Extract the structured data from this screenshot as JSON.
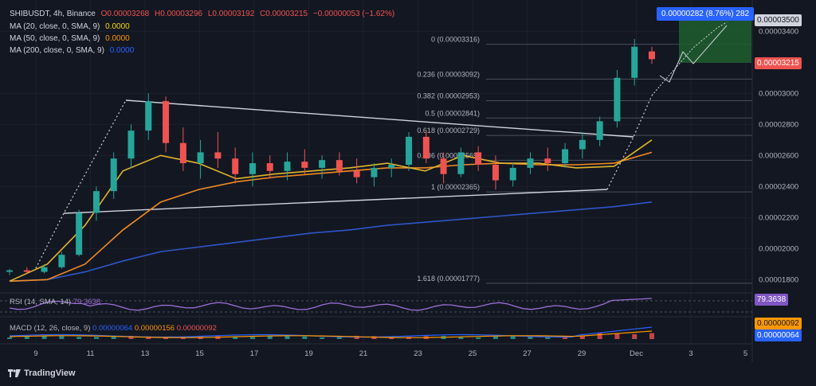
{
  "header": {
    "symbol": "SHIBUSDT, 4h, Binance",
    "open": "O0.00003268",
    "high": "H0.00003296",
    "low": "L0.00003192",
    "close": "C0.00003215",
    "change": "−0.00000053 (−1.62%)"
  },
  "ma_legend": [
    {
      "label": "MA (20, close, 0, SMA, 9)",
      "value": "0.0000",
      "color": "#f5d90a"
    },
    {
      "label": "MA (50, close, 0, SMA, 9)",
      "value": "0.0000",
      "color": "#ff9800"
    },
    {
      "label": "MA (200, close, 0, SMA, 9)",
      "value": "0.0000",
      "color": "#2962ff"
    }
  ],
  "rsi_label": "RSI (14, SMA, 14)",
  "rsi_value": "79.3638",
  "macd_label": "MACD (12, 26, close, 9)",
  "macd_values": [
    "0.00000064",
    "0.00000156",
    "0.00000092"
  ],
  "macd_axis_values": [
    "0.00000092",
    "0.00000064"
  ],
  "current_price": "0.00003215",
  "price_axis_top": "0.00003500",
  "target_box": "0.00000282 (8.76%) 282",
  "branding": "TradingView",
  "colors": {
    "up": "#26a69a",
    "down": "#ef5350",
    "ma20": "#e0b52c",
    "ma50": "#f08a24",
    "ma200": "#2f56c9",
    "rsi": "#9c6fd6",
    "accent": "#2962ff"
  },
  "chart_data": {
    "type": "candlestick",
    "x_ticks": [
      "9",
      "11",
      "13",
      "15",
      "17",
      "19",
      "21",
      "23",
      "25",
      "27",
      "29",
      "Dec",
      "3",
      "5"
    ],
    "y_ticks": [
      "0.00003400",
      "0.00003000",
      "0.00002800",
      "0.00002600",
      "0.00002400",
      "0.00002200",
      "0.00002000",
      "0.00001800"
    ],
    "ylim": [
      1.73e-05,
      3.55e-05
    ],
    "fib_levels": [
      {
        "label": "0 (0.00003316)",
        "value": 3.316e-05
      },
      {
        "label": "0.236 (0.00003092)",
        "value": 3.092e-05
      },
      {
        "label": "0.382 (0.00002953)",
        "value": 2.953e-05
      },
      {
        "label": "0.5 (0.00002841)",
        "value": 2.841e-05
      },
      {
        "label": "0.618 (0.00002729)",
        "value": 2.729e-05
      },
      {
        "label": "0.786 (0.00002569)",
        "value": 2.569e-05
      },
      {
        "label": "1 (0.00002365)",
        "value": 2.365e-05
      },
      {
        "label": "1.618 (0.00001777)",
        "value": 1.777e-05
      }
    ],
    "ma20_values": [
      1.79e-05,
      1.9e-05,
      2.15e-05,
      2.5e-05,
      2.6e-05,
      2.55e-05,
      2.45e-05,
      2.48e-05,
      2.5e-05,
      2.52e-05,
      2.55e-05,
      2.5e-05,
      2.6e-05,
      2.55e-05,
      2.55e-05,
      2.52e-05,
      2.53e-05,
      2.7e-05
    ],
    "ma50_values": [
      1.79e-05,
      1.8e-05,
      1.9e-05,
      2.12e-05,
      2.3e-05,
      2.38e-05,
      2.43e-05,
      2.46e-05,
      2.48e-05,
      2.5e-05,
      2.52e-05,
      2.52e-05,
      2.54e-05,
      2.55e-05,
      2.54e-05,
      2.54e-05,
      2.55e-05,
      2.62e-05
    ],
    "ma200_values": [
      1.79e-05,
      1.8e-05,
      1.85e-05,
      1.92e-05,
      1.98e-05,
      2.01e-05,
      2.04e-05,
      2.07e-05,
      2.1e-05,
      2.12e-05,
      2.15e-05,
      2.17e-05,
      2.19e-05,
      2.21e-05,
      2.23e-05,
      2.25e-05,
      2.27e-05,
      2.3e-05
    ],
    "candles": [
      [
        1.85e-05,
        1.87e-05,
        1.83e-05,
        1.86e-05
      ],
      [
        1.86e-05,
        1.88e-05,
        1.84e-05,
        1.85e-05
      ],
      [
        1.85e-05,
        1.9e-05,
        1.84e-05,
        1.88e-05
      ],
      [
        1.88e-05,
        1.98e-05,
        1.87e-05,
        1.96e-05
      ],
      [
        1.96e-05,
        2.25e-05,
        1.95e-05,
        2.23e-05
      ],
      [
        2.23e-05,
        2.4e-05,
        2.18e-05,
        2.37e-05
      ],
      [
        2.37e-05,
        2.62e-05,
        2.32e-05,
        2.58e-05
      ],
      [
        2.58e-05,
        2.8e-05,
        2.52e-05,
        2.76e-05
      ],
      [
        2.76e-05,
        3e-05,
        2.7e-05,
        2.95e-05
      ],
      [
        2.95e-05,
        2.98e-05,
        2.62e-05,
        2.68e-05
      ],
      [
        2.68e-05,
        2.78e-05,
        2.5e-05,
        2.55e-05
      ],
      [
        2.55e-05,
        2.7e-05,
        2.45e-05,
        2.62e-05
      ],
      [
        2.62e-05,
        2.75e-05,
        2.52e-05,
        2.58e-05
      ],
      [
        2.58e-05,
        2.65e-05,
        2.42e-05,
        2.48e-05
      ],
      [
        2.48e-05,
        2.62e-05,
        2.4e-05,
        2.55e-05
      ],
      [
        2.55e-05,
        2.6e-05,
        2.45e-05,
        2.5e-05
      ],
      [
        2.5e-05,
        2.62e-05,
        2.44e-05,
        2.56e-05
      ],
      [
        2.56e-05,
        2.64e-05,
        2.48e-05,
        2.52e-05
      ],
      [
        2.52e-05,
        2.6e-05,
        2.45e-05,
        2.57e-05
      ],
      [
        2.57e-05,
        2.62e-05,
        2.47e-05,
        2.5e-05
      ],
      [
        2.5e-05,
        2.58e-05,
        2.42e-05,
        2.46e-05
      ],
      [
        2.46e-05,
        2.55e-05,
        2.4e-05,
        2.52e-05
      ],
      [
        2.52e-05,
        2.58e-05,
        2.46e-05,
        2.54e-05
      ],
      [
        2.54e-05,
        2.75e-05,
        2.5e-05,
        2.72e-05
      ],
      [
        2.72e-05,
        2.76e-05,
        2.55e-05,
        2.58e-05
      ],
      [
        2.58e-05,
        2.62e-05,
        2.42e-05,
        2.48e-05
      ],
      [
        2.48e-05,
        2.65e-05,
        2.46e-05,
        2.62e-05
      ],
      [
        2.62e-05,
        2.66e-05,
        2.5e-05,
        2.54e-05
      ],
      [
        2.54e-05,
        2.6e-05,
        2.38e-05,
        2.44e-05
      ],
      [
        2.44e-05,
        2.55e-05,
        2.4e-05,
        2.52e-05
      ],
      [
        2.52e-05,
        2.62e-05,
        2.48e-05,
        2.58e-05
      ],
      [
        2.58e-05,
        2.65e-05,
        2.5e-05,
        2.55e-05
      ],
      [
        2.55e-05,
        2.68e-05,
        2.52e-05,
        2.64e-05
      ],
      [
        2.64e-05,
        2.75e-05,
        2.58e-05,
        2.7e-05
      ],
      [
        2.7e-05,
        2.85e-05,
        2.66e-05,
        2.82e-05
      ],
      [
        2.82e-05,
        3.15e-05,
        2.78e-05,
        3.1e-05
      ],
      [
        3.1e-05,
        3.35e-05,
        3.05e-05,
        3.3e-05
      ],
      [
        3.27e-05,
        3.3e-05,
        3.19e-05,
        3.22e-05
      ]
    ]
  }
}
